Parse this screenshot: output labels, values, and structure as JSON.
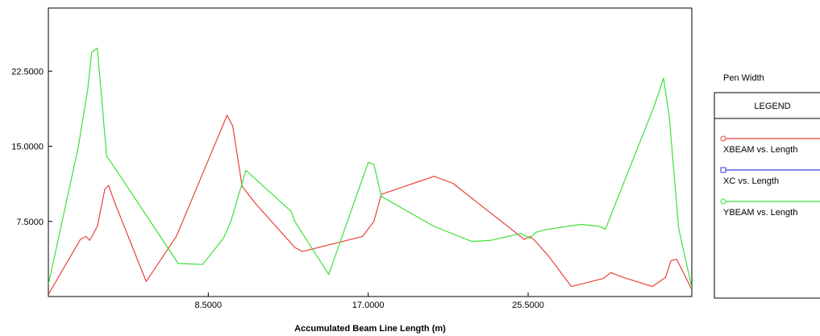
{
  "chart_data": {
    "type": "line",
    "xlabel": "Accumulated Beam Line Length (m)",
    "ylabel": "",
    "xlim": [
      0,
      34.2
    ],
    "ylim": [
      0,
      28.8
    ],
    "x_ticks": [
      8.5,
      17.0,
      25.5
    ],
    "x_tick_labels": [
      "8.5000",
      "17.0000",
      "25.5000"
    ],
    "y_ticks": [
      7.5,
      15.0,
      22.5
    ],
    "y_tick_labels": [
      "7.5000",
      "15.0000",
      "22.5000"
    ],
    "grid": false,
    "legend_position": "right",
    "series": [
      {
        "name": "XBEAM vs. Length",
        "color": "#e8413a",
        "marker": "circle",
        "points": [
          [
            0,
            0.2
          ],
          [
            1.7,
            5.7
          ],
          [
            2.0,
            6.0
          ],
          [
            2.2,
            5.6
          ],
          [
            2.6,
            7.0
          ],
          [
            3.0,
            10.7
          ],
          [
            3.2,
            11.1
          ],
          [
            3.5,
            9.5
          ],
          [
            5.2,
            1.5
          ],
          [
            6.8,
            6.0
          ],
          [
            9.5,
            18.1
          ],
          [
            9.8,
            17.0
          ],
          [
            10.3,
            11.0
          ],
          [
            11.0,
            9.3
          ],
          [
            13.1,
            4.9
          ],
          [
            13.5,
            4.5
          ],
          [
            16.7,
            6.0
          ],
          [
            17.3,
            7.5
          ],
          [
            17.7,
            10.2
          ],
          [
            20.5,
            12.0
          ],
          [
            21.5,
            11.3
          ],
          [
            25.3,
            5.7
          ],
          [
            25.6,
            6.0
          ],
          [
            25.9,
            5.5
          ],
          [
            26.6,
            4.0
          ],
          [
            27.8,
            1.0
          ],
          [
            29.5,
            1.8
          ],
          [
            29.9,
            2.4
          ],
          [
            30.4,
            2.0
          ],
          [
            32.1,
            1.0
          ],
          [
            32.8,
            1.9
          ],
          [
            33.1,
            3.6
          ],
          [
            33.4,
            3.7
          ],
          [
            34.2,
            0.7
          ]
        ]
      },
      {
        "name": "XC vs. Length",
        "color": "#2f3ed6",
        "marker": "square",
        "points": []
      },
      {
        "name": "YBEAM vs. Length",
        "color": "#3ee03a",
        "marker": "circle",
        "points": [
          [
            0,
            1.2
          ],
          [
            1.6,
            15.0
          ],
          [
            2.1,
            20.8
          ],
          [
            2.3,
            24.4
          ],
          [
            2.6,
            24.8
          ],
          [
            3.1,
            14.0
          ],
          [
            3.3,
            13.5
          ],
          [
            6.9,
            3.3
          ],
          [
            8.2,
            3.2
          ],
          [
            9.3,
            5.8
          ],
          [
            9.7,
            7.5
          ],
          [
            10.5,
            12.6
          ],
          [
            12.9,
            8.5
          ],
          [
            13.1,
            7.5
          ],
          [
            14.9,
            2.2
          ],
          [
            17.0,
            13.4
          ],
          [
            17.3,
            13.2
          ],
          [
            17.7,
            10.0
          ],
          [
            20.5,
            7.0
          ],
          [
            22.5,
            5.5
          ],
          [
            23.5,
            5.6
          ],
          [
            25.1,
            6.3
          ],
          [
            25.6,
            5.8
          ],
          [
            25.9,
            6.4
          ],
          [
            26.5,
            6.7
          ],
          [
            28.3,
            7.2
          ],
          [
            29.3,
            7.0
          ],
          [
            29.6,
            6.7
          ],
          [
            32.2,
            19.0
          ],
          [
            32.7,
            21.8
          ],
          [
            33.0,
            18.0
          ],
          [
            33.5,
            6.8
          ],
          [
            34.2,
            0.9
          ]
        ]
      }
    ],
    "legend": {
      "heading": "Pen Width",
      "title": "LEGEND"
    }
  }
}
